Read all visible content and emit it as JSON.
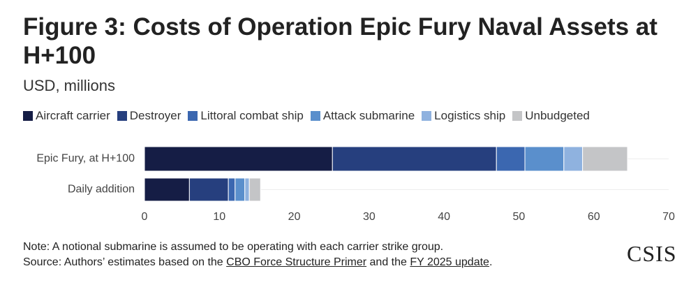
{
  "chart_data": {
    "type": "stacked-bar-horizontal",
    "title": "Figure 3: Costs of Operation Epic Fury Naval Assets at H+100",
    "subtitle": "USD, millions",
    "categories": [
      "Epic Fury, at H+100",
      "Daily addition"
    ],
    "series": [
      {
        "name": "Aircraft carrier",
        "color": "#151d45",
        "values": [
          25.1,
          6.0
        ]
      },
      {
        "name": "Destroyer",
        "color": "#263f7e",
        "values": [
          21.9,
          5.2
        ]
      },
      {
        "name": "Littoral combat ship",
        "color": "#3b67b0",
        "values": [
          3.8,
          0.9
        ]
      },
      {
        "name": "Attack submarine",
        "color": "#5a8fcc",
        "values": [
          5.2,
          1.3
        ]
      },
      {
        "name": "Logistics ship",
        "color": "#8fb2df",
        "values": [
          2.5,
          0.6
        ]
      },
      {
        "name": "Unbudgeted",
        "color": "#c4c5c7",
        "values": [
          6.0,
          1.5
        ]
      }
    ],
    "xlim": [
      0,
      70
    ],
    "xticks": [
      0,
      10,
      20,
      30,
      40,
      50,
      60,
      70
    ],
    "grid": false,
    "note": "Note: A notional submarine is assumed to be operating with each carrier strike group.",
    "source": {
      "prefix": "Source: Authors’ estimates based on the ",
      "link1": "CBO Force Structure Primer",
      "middle": " and the ",
      "link2": "FY 2025 update",
      "suffix": "."
    },
    "logo": "CSIS"
  }
}
